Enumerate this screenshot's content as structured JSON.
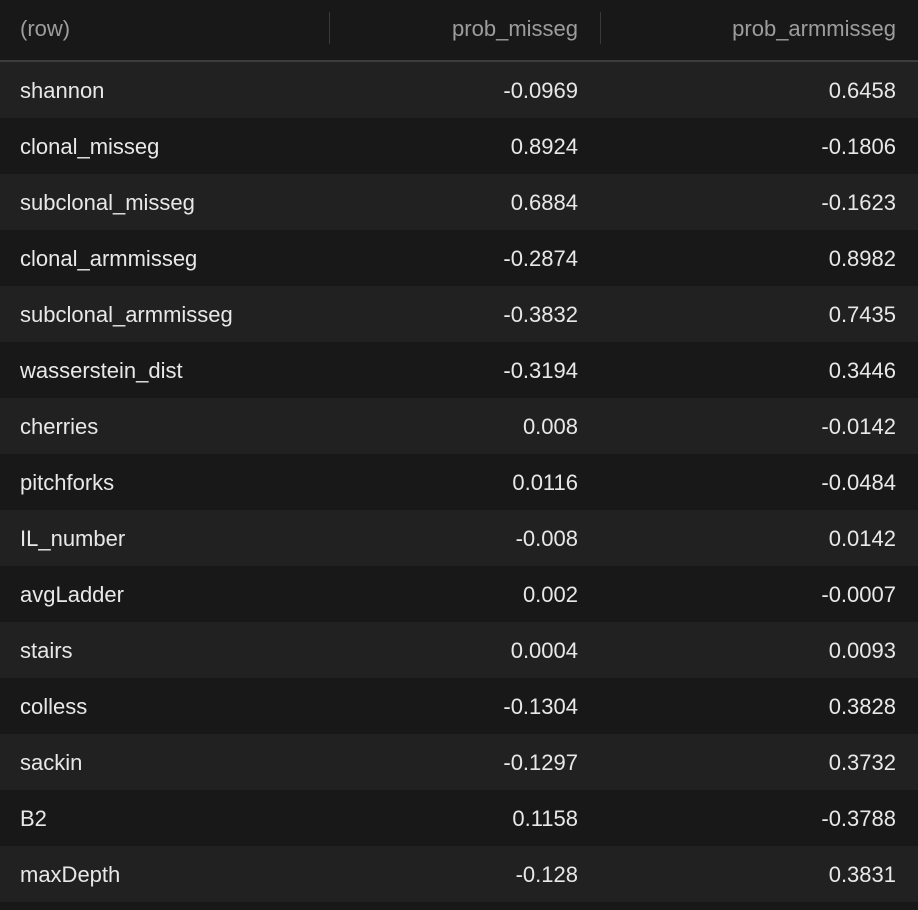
{
  "table": {
    "columns": [
      "(row)",
      "prob_misseg",
      "prob_armmisseg"
    ],
    "rows": [
      [
        "shannon",
        "-0.0969",
        "0.6458"
      ],
      [
        "clonal_misseg",
        "0.8924",
        "-0.1806"
      ],
      [
        "subclonal_misseg",
        "0.6884",
        "-0.1623"
      ],
      [
        "clonal_armmisseg",
        "-0.2874",
        "0.8982"
      ],
      [
        "subclonal_armmisseg",
        "-0.3832",
        "0.7435"
      ],
      [
        "wasserstein_dist",
        "-0.3194",
        "0.3446"
      ],
      [
        "cherries",
        "0.008",
        "-0.0142"
      ],
      [
        "pitchforks",
        "0.0116",
        "-0.0484"
      ],
      [
        "IL_number",
        "-0.008",
        "0.0142"
      ],
      [
        "avgLadder",
        "0.002",
        "-0.0007"
      ],
      [
        "stairs",
        "0.0004",
        "0.0093"
      ],
      [
        "colless",
        "-0.1304",
        "0.3828"
      ],
      [
        "sackin",
        "-0.1297",
        "0.3732"
      ],
      [
        "B2",
        "0.1158",
        "-0.3788"
      ],
      [
        "maxDepth",
        "-0.128",
        "0.3831"
      ]
    ]
  },
  "colors": {
    "background": "#181818",
    "row_alt": "#212121",
    "header_text": "#9d9d9d",
    "cell_text": "#e8e8e8"
  }
}
